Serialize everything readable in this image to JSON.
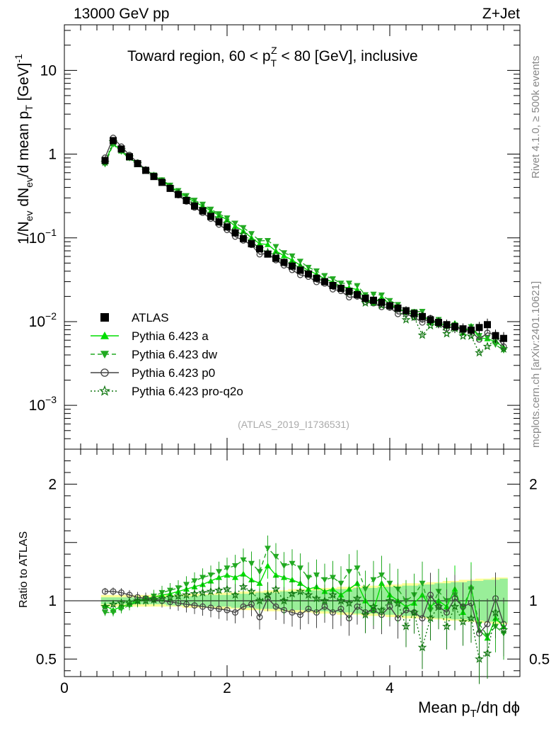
{
  "header": {
    "energy": "13000 GeV pp",
    "process": "Z+Jet",
    "title_main": "Toward region, 60 < p",
    "title_sup": "Z",
    "title_sub": "T",
    "title_rest": " < 80 [GeV], inclusive",
    "watermark": "(ATLAS_2019_I1736531)"
  },
  "side_text": {
    "rivet": "Rivet 4.1.0, ≥ 500k events",
    "mcplots": "mcplots.cern.ch [arXiv:2401.10621]"
  },
  "axes": {
    "top_ylabel": "1/N_ev dN_ev/d mean p_T [GeV]^-1",
    "bottom_ylabel": "Ratio to ATLAS",
    "xlabel": "Mean p_T/dη dϕ"
  },
  "legend": [
    {
      "label": "ATLAS",
      "color": "#000000",
      "marker": "square",
      "line": "none"
    },
    {
      "label": "Pythia 6.423 a",
      "color": "#00dd00",
      "marker": "triangle-up",
      "line": "solid"
    },
    {
      "label": "Pythia 6.423 dw",
      "color": "#22aa22",
      "marker": "triangle-down",
      "line": "dashed"
    },
    {
      "label": "Pythia 6.423 p0",
      "color": "#444444",
      "marker": "circle-open",
      "line": "solid"
    },
    {
      "label": "Pythia 6.423 pro-q2o",
      "color": "#117711",
      "marker": "star-open",
      "line": "dotted"
    }
  ],
  "chart_data": {
    "type": "scatter",
    "x_range": [
      0,
      5.6
    ],
    "y_log_range": [
      0.0003,
      35
    ],
    "ratio_range": [
      0.35,
      2.3
    ],
    "x_ticks": [
      0,
      2,
      4
    ],
    "x_tick_labels": [
      "0",
      "2",
      "4"
    ],
    "y_ticks": [
      {
        "v": 10,
        "base": "10",
        "exp": ""
      },
      {
        "v": 1,
        "base": "1",
        "exp": ""
      },
      {
        "v": 0.1,
        "base": "10",
        "exp": "−1"
      },
      {
        "v": 0.01,
        "base": "10",
        "exp": "−2"
      },
      {
        "v": 0.001,
        "base": "10",
        "exp": "−3"
      }
    ],
    "ratio_ticks": [
      {
        "v": 0.5,
        "label": "0.5"
      },
      {
        "v": 1,
        "label": "1"
      },
      {
        "v": 2,
        "label": "2"
      }
    ],
    "x": [
      0.5,
      0.6,
      0.7,
      0.8,
      0.9,
      1.0,
      1.1,
      1.2,
      1.3,
      1.4,
      1.5,
      1.6,
      1.7,
      1.8,
      1.9,
      2.0,
      2.1,
      2.2,
      2.3,
      2.4,
      2.5,
      2.6,
      2.7,
      2.8,
      2.9,
      3.0,
      3.1,
      3.2,
      3.3,
      3.4,
      3.5,
      3.6,
      3.7,
      3.8,
      3.9,
      4.0,
      4.1,
      4.2,
      4.3,
      4.4,
      4.5,
      4.6,
      4.7,
      4.8,
      4.9,
      5.0,
      5.1,
      5.2,
      5.3,
      5.4
    ],
    "atlas": [
      0.84,
      1.45,
      1.15,
      0.93,
      0.77,
      0.64,
      0.54,
      0.46,
      0.39,
      0.33,
      0.28,
      0.24,
      0.21,
      0.18,
      0.155,
      0.135,
      0.115,
      0.098,
      0.085,
      0.074,
      0.064,
      0.057,
      0.051,
      0.046,
      0.041,
      0.037,
      0.033,
      0.03,
      0.027,
      0.025,
      0.023,
      0.021,
      0.019,
      0.018,
      0.017,
      0.0155,
      0.0145,
      0.0135,
      0.0125,
      0.0115,
      0.0105,
      0.0098,
      0.0092,
      0.0087,
      0.0082,
      0.0079,
      0.0085,
      0.0092,
      0.0068,
      0.0063
    ],
    "atlas_err_frac": [
      0.03,
      0.03,
      0.03,
      0.03,
      0.03,
      0.03,
      0.03,
      0.03,
      0.04,
      0.04,
      0.04,
      0.04,
      0.05,
      0.05,
      0.05,
      0.05,
      0.06,
      0.06,
      0.06,
      0.07,
      0.07,
      0.07,
      0.08,
      0.08,
      0.08,
      0.09,
      0.09,
      0.09,
      0.1,
      0.1,
      0.1,
      0.11,
      0.11,
      0.11,
      0.12,
      0.12,
      0.12,
      0.13,
      0.13,
      0.14,
      0.14,
      0.15,
      0.15,
      0.16,
      0.16,
      0.17,
      0.17,
      0.18,
      0.18,
      0.19
    ],
    "atlas_band_frac": [
      0.05,
      0.05,
      0.05,
      0.05,
      0.05,
      0.05,
      0.05,
      0.05,
      0.05,
      0.05,
      0.06,
      0.06,
      0.06,
      0.06,
      0.07,
      0.07,
      0.07,
      0.08,
      0.08,
      0.08,
      0.09,
      0.09,
      0.09,
      0.1,
      0.1,
      0.1,
      0.11,
      0.11,
      0.11,
      0.12,
      0.12,
      0.12,
      0.13,
      0.13,
      0.13,
      0.14,
      0.14,
      0.15,
      0.15,
      0.15,
      0.16,
      0.16,
      0.17,
      0.17,
      0.18,
      0.18,
      0.19,
      0.19,
      0.2,
      0.2
    ],
    "series": [
      {
        "name": "Pythia 6.423 a",
        "marker": "triangle-up",
        "dash": "none",
        "color": "#00dd00",
        "ratio": [
          0.96,
          0.92,
          0.95,
          0.97,
          1.0,
          1.02,
          1.03,
          1.05,
          1.06,
          1.08,
          1.1,
          1.12,
          1.14,
          1.17,
          1.2,
          1.22,
          1.2,
          1.23,
          1.18,
          1.15,
          1.3,
          1.22,
          1.2,
          1.18,
          1.15,
          1.1,
          1.12,
          1.08,
          1.1,
          1.05,
          1.1,
          1.15,
          1.0,
          0.92,
          1.15,
          1.05,
          1.0,
          0.95,
          0.98,
          1.05,
          0.95,
          1.0,
          0.95,
          1.1,
          0.9,
          1.12,
          0.75,
          0.68,
          0.85,
          0.78
        ]
      },
      {
        "name": "Pythia 6.423 dw",
        "marker": "triangle-down",
        "dash": "6,4",
        "color": "#22aa22",
        "ratio": [
          0.9,
          0.9,
          0.93,
          0.96,
          0.99,
          1.02,
          1.04,
          1.07,
          1.09,
          1.11,
          1.14,
          1.17,
          1.2,
          1.22,
          1.25,
          1.28,
          1.3,
          1.35,
          1.32,
          1.25,
          1.45,
          1.38,
          1.3,
          1.32,
          1.28,
          1.2,
          1.22,
          1.18,
          1.2,
          1.15,
          1.25,
          1.28,
          1.1,
          1.18,
          1.22,
          1.15,
          1.1,
          1.0,
          1.05,
          1.15,
          0.92,
          1.08,
          1.0,
          1.05,
          0.95,
          1.1,
          0.8,
          0.7,
          0.78,
          0.72
        ]
      },
      {
        "name": "Pythia 6.423 p0",
        "marker": "circle-open",
        "dash": "none",
        "color": "#444444",
        "ratio": [
          1.08,
          1.08,
          1.07,
          1.05,
          1.03,
          1.02,
          1.01,
          1.0,
          0.99,
          0.98,
          0.97,
          0.96,
          0.95,
          0.94,
          0.93,
          0.92,
          0.9,
          0.95,
          0.97,
          0.86,
          1.02,
          0.95,
          0.92,
          0.9,
          0.88,
          0.93,
          0.9,
          0.95,
          0.9,
          0.93,
          0.85,
          0.95,
          0.9,
          0.92,
          0.88,
          0.95,
          0.85,
          0.92,
          0.9,
          0.85,
          1.05,
          0.95,
          0.9,
          1.02,
          0.95,
          0.98,
          0.72,
          0.8,
          1.02,
          0.8
        ]
      },
      {
        "name": "Pythia 6.423 pro-q2o",
        "marker": "star-open",
        "dash": "2,3",
        "color": "#117711",
        "ratio": [
          0.95,
          0.97,
          0.98,
          0.99,
          1.0,
          1.0,
          1.01,
          1.02,
          1.03,
          1.04,
          1.05,
          1.06,
          1.07,
          1.08,
          1.09,
          1.1,
          1.05,
          1.12,
          1.08,
          1.0,
          1.05,
          1.1,
          1.0,
          1.06,
          1.08,
          1.05,
          1.02,
          1.0,
          1.05,
          1.0,
          0.98,
          1.02,
          0.88,
          0.95,
          0.92,
          1.0,
          0.98,
          0.78,
          0.9,
          0.6,
          0.85,
          0.95,
          0.78,
          0.95,
          0.82,
          0.85,
          0.5,
          0.55,
          0.9,
          0.75
        ]
      }
    ]
  }
}
